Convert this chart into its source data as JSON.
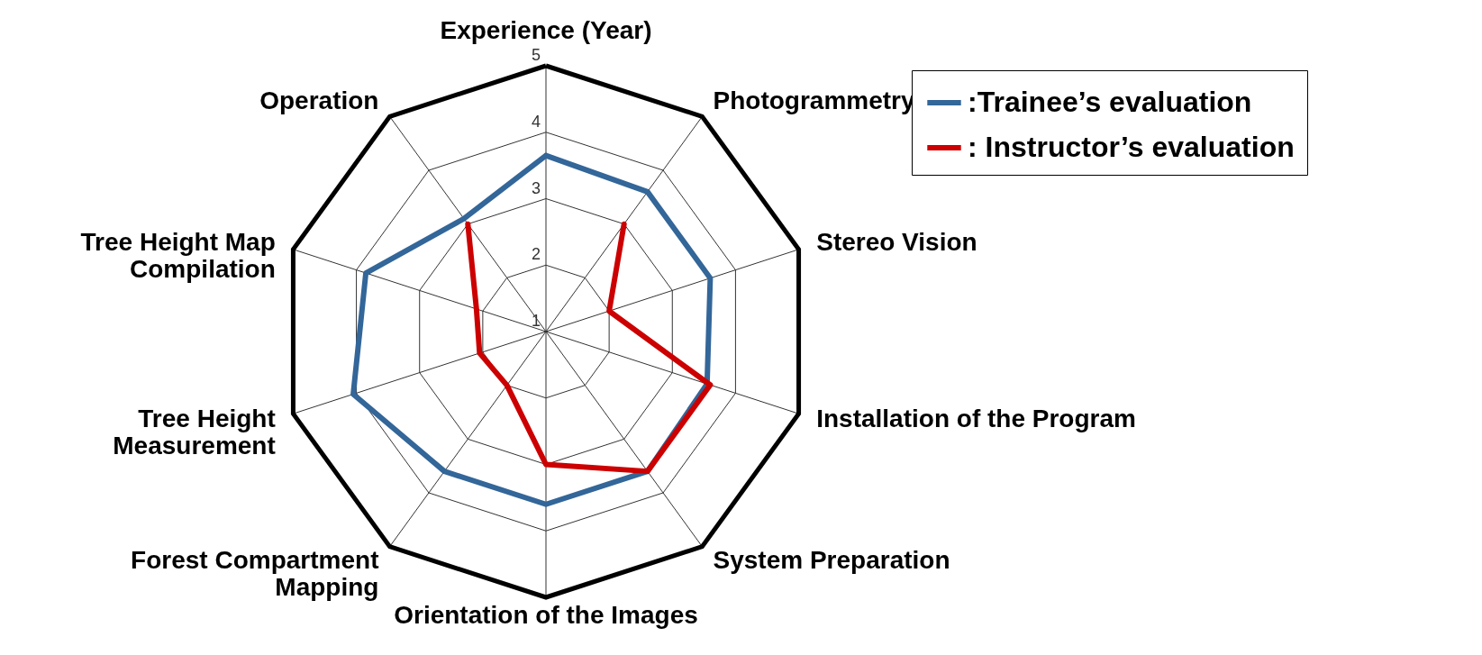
{
  "chart_data": {
    "type": "radar",
    "categories": [
      "Experience (Year)",
      "Photogrammetry",
      "Stereo Vision",
      "Installation of the Program",
      "System Preparation",
      "Orientation of the Images",
      "Forest Compartment Mapping",
      "Tree Height Measurement",
      "Tree Height Map Compilation",
      "Operation"
    ],
    "series": [
      {
        "name": ":Trainee’s evaluation",
        "color": "#336699",
        "values": [
          3.65,
          3.6,
          3.6,
          3.55,
          3.6,
          3.6,
          3.6,
          4.05,
          3.85,
          3.1
        ]
      },
      {
        "name": ": Instructor’s evaluation",
        "color": "#cc0000",
        "values": [
          null,
          3.0,
          2.0,
          3.6,
          3.6,
          3.0,
          2.0,
          2.05,
          2.1,
          3.0
        ]
      }
    ],
    "ylim": [
      1,
      5
    ],
    "yticks": [
      1,
      2,
      3,
      4,
      5
    ],
    "grid": true,
    "legend": "top right"
  }
}
